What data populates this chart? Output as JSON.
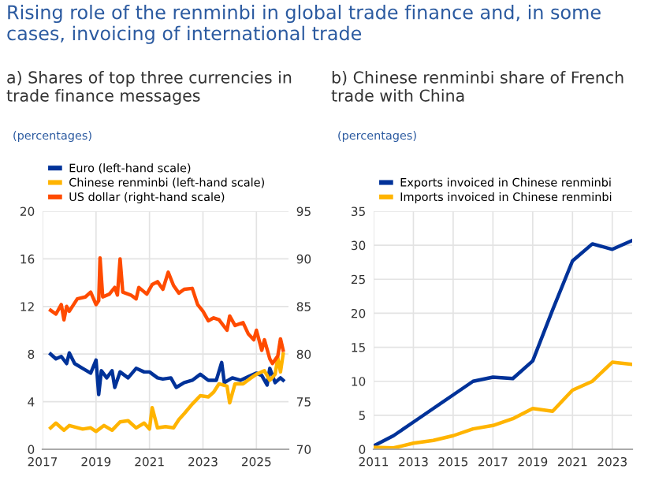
{
  "chart_data": [
    {
      "type": "line",
      "title": "Rising role of the renminbi in global trade finance and, in some cases, invoicing of international trade",
      "subtitle": "a) Shares of top three currencies in trade finance messages",
      "ylabel": "(percentages)",
      "xlim": [
        2017,
        2026.2
      ],
      "xticks": [
        2017,
        2019,
        2021,
        2023,
        2025
      ],
      "ylim": [
        0,
        20
      ],
      "yticks": [
        0,
        4,
        8,
        12,
        16,
        20
      ],
      "y2lim": [
        70,
        95
      ],
      "y2ticks": [
        70,
        75,
        80,
        85,
        90,
        95
      ],
      "grid": true,
      "legend": "top left",
      "series": [
        {
          "name": "Euro (left-hand scale)",
          "color": "#003299",
          "x": [
            2017.3,
            2017.5,
            2017.7,
            2017.9,
            2018.0,
            2018.2,
            2018.5,
            2018.8,
            2019.0,
            2019.1,
            2019.2,
            2019.4,
            2019.6,
            2019.7,
            2019.9,
            2020.2,
            2020.5,
            2020.8,
            2021.0,
            2021.3,
            2021.5,
            2021.8,
            2022.0,
            2022.3,
            2022.6,
            2022.9,
            2023.2,
            2023.5,
            2023.7,
            2023.8,
            2024.1,
            2024.4,
            2024.7,
            2025.0,
            2025.2,
            2025.4,
            2025.5,
            2025.7,
            2025.9,
            2026.0
          ],
          "values": [
            8.0,
            7.6,
            7.8,
            7.2,
            8.1,
            7.2,
            6.8,
            6.4,
            7.5,
            4.6,
            6.6,
            6.0,
            6.6,
            5.2,
            6.5,
            6.0,
            6.8,
            6.5,
            6.5,
            6.0,
            5.9,
            6.0,
            5.2,
            5.6,
            5.8,
            6.3,
            5.8,
            5.8,
            7.3,
            5.6,
            6.0,
            5.8,
            6.1,
            6.4,
            6.2,
            5.4,
            6.8,
            5.6,
            6.0,
            5.8
          ]
        },
        {
          "name": "Chinese renminbi (left-hand scale)",
          "color": "#ffb400",
          "x": [
            2017.3,
            2017.5,
            2017.8,
            2018.0,
            2018.5,
            2018.8,
            2019.0,
            2019.3,
            2019.6,
            2019.9,
            2020.2,
            2020.5,
            2020.8,
            2021.0,
            2021.1,
            2021.3,
            2021.6,
            2021.9,
            2022.1,
            2022.3,
            2022.6,
            2022.9,
            2023.2,
            2023.4,
            2023.6,
            2023.9,
            2024.0,
            2024.2,
            2024.5,
            2024.8,
            2025.0,
            2025.3,
            2025.5,
            2025.7,
            2025.8,
            2025.9,
            2026.0
          ],
          "values": [
            1.8,
            2.2,
            1.6,
            2.0,
            1.7,
            1.8,
            1.5,
            2.0,
            1.6,
            2.3,
            2.4,
            1.8,
            2.2,
            1.7,
            3.5,
            1.8,
            1.9,
            1.8,
            2.5,
            3.0,
            3.8,
            4.5,
            4.4,
            4.8,
            5.5,
            5.3,
            3.9,
            5.5,
            5.5,
            6.0,
            6.3,
            6.6,
            5.8,
            6.3,
            7.7,
            6.5,
            8.0
          ]
        },
        {
          "name": "US dollar (right-hand scale)",
          "color": "#ff4b00",
          "axis": "y2",
          "x": [
            2017.3,
            2017.5,
            2017.7,
            2017.8,
            2017.9,
            2018.0,
            2018.3,
            2018.6,
            2018.8,
            2019.0,
            2019.1,
            2019.15,
            2019.25,
            2019.5,
            2019.7,
            2019.8,
            2019.9,
            2020.0,
            2020.3,
            2020.5,
            2020.6,
            2020.9,
            2021.1,
            2021.3,
            2021.5,
            2021.7,
            2021.9,
            2022.1,
            2022.3,
            2022.6,
            2022.8,
            2023.0,
            2023.2,
            2023.4,
            2023.6,
            2023.9,
            2024.0,
            2024.2,
            2024.5,
            2024.7,
            2024.9,
            2025.0,
            2025.2,
            2025.3,
            2025.5,
            2025.6,
            2025.8,
            2025.9,
            2026.0
          ],
          "values": [
            84.6,
            84.2,
            85.2,
            83.6,
            85.0,
            84.5,
            85.8,
            86.0,
            86.5,
            85.2,
            85.6,
            90.1,
            86.0,
            86.3,
            87.0,
            86.2,
            90.0,
            86.5,
            86.2,
            85.8,
            87.0,
            86.3,
            87.3,
            87.6,
            86.8,
            88.6,
            87.2,
            86.4,
            86.8,
            86.9,
            85.2,
            84.5,
            83.5,
            83.8,
            83.6,
            82.5,
            84.0,
            83.0,
            83.3,
            82.1,
            81.5,
            82.5,
            80.4,
            81.5,
            79.5,
            79.0,
            79.8,
            81.6,
            80.4
          ]
        }
      ]
    },
    {
      "type": "line",
      "title": "b) Chinese renminbi share of French trade with China",
      "ylabel": "(percentages)",
      "x": [
        2011,
        2012,
        2013,
        2014,
        2015,
        2016,
        2017,
        2018,
        2019,
        2020,
        2021,
        2022,
        2023,
        2024
      ],
      "xlim": [
        2011,
        2024
      ],
      "xticks": [
        2011,
        2013,
        2015,
        2017,
        2019,
        2021,
        2023
      ],
      "ylim": [
        0,
        35
      ],
      "yticks": [
        0,
        5,
        10,
        15,
        20,
        25,
        30,
        35
      ],
      "grid": true,
      "legend": "top left",
      "series": [
        {
          "name": "Exports invoiced in Chinese renminbi",
          "color": "#003299",
          "values": [
            0.5,
            2.0,
            4.0,
            6.0,
            8.0,
            10.0,
            10.6,
            10.4,
            13.0,
            20.5,
            27.7,
            30.2,
            29.4,
            30.7
          ]
        },
        {
          "name": "Imports invoiced in Chinese renminbi",
          "color": "#ffb400",
          "values": [
            0.3,
            0.2,
            0.9,
            1.3,
            2.0,
            3.0,
            3.5,
            4.5,
            6.0,
            5.6,
            8.7,
            10.0,
            12.8,
            12.5
          ]
        }
      ]
    }
  ]
}
